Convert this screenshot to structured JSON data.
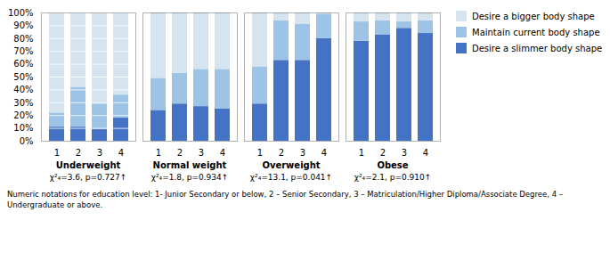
{
  "chart_data": [
    {
      "type": "bar",
      "stacked": true,
      "xlabel": "Underweight",
      "annotations": [
        "χ²₄=3.6, p=0.727↑"
      ],
      "categories": [
        1,
        2,
        3,
        4
      ],
      "series": [
        {
          "name": "Desire a slimmer body shape",
          "color": "#4472C4",
          "values": [
            11,
            11,
            9,
            18
          ]
        },
        {
          "name": "Maintain current body shape",
          "color": "#9DC3E6",
          "values": [
            11,
            31,
            20,
            18
          ]
        },
        {
          "name": "Desire a bigger body shape",
          "color": "#D6E4F0",
          "values": [
            78,
            58,
            71,
            64
          ]
        }
      ],
      "ylim": [
        0,
        100
      ],
      "yticks": [
        {
          "value": 0,
          "label": "0%"
        },
        {
          "value": 10,
          "label": "10%"
        },
        {
          "value": 20,
          "label": "20%"
        },
        {
          "value": 30,
          "label": "30%"
        },
        {
          "value": 40,
          "label": "40%"
        },
        {
          "value": 50,
          "label": "50%"
        },
        {
          "value": 60,
          "label": "60%"
        },
        {
          "value": 70,
          "label": "70%"
        },
        {
          "value": 80,
          "label": "80%"
        },
        {
          "value": 90,
          "label": "90%"
        },
        {
          "value": 100,
          "label": "100%"
        }
      ],
      "grid": true
    },
    {
      "type": "bar",
      "stacked": true,
      "xlabel": "Normal weight",
      "annotations": [
        "χ²₄=1.8, p=0.934↑"
      ],
      "categories": [
        1,
        2,
        3,
        4
      ],
      "series": [
        {
          "name": "Desire a slimmer body shape",
          "color": "#4472C4",
          "values": [
            24,
            29,
            27,
            25
          ]
        },
        {
          "name": "Maintain current body shape",
          "color": "#9DC3E6",
          "values": [
            25,
            24,
            29,
            31
          ]
        },
        {
          "name": "Desire a bigger body shape",
          "color": "#D6E4F0",
          "values": [
            51,
            47,
            44,
            44
          ]
        }
      ],
      "ylim": [
        0,
        100
      ],
      "tick_labels": "x",
      "grid": false
    },
    {
      "type": "bar",
      "stacked": true,
      "xlabel": "Overweight",
      "annotations": [
        "χ²₄=13.1, p=0.041↑"
      ],
      "categories": [
        1,
        2,
        3,
        4
      ],
      "series": [
        {
          "name": "Desire a slimmer body shape",
          "color": "#4472C4",
          "values": [
            29,
            63,
            63,
            80
          ]
        },
        {
          "name": "Maintain current body shape",
          "color": "#9DC3E6",
          "values": [
            29,
            31,
            28,
            19
          ]
        },
        {
          "name": "Desire a bigger body shape",
          "color": "#D6E4F0",
          "values": [
            42,
            6,
            9,
            1
          ]
        }
      ],
      "ylim": [
        0,
        100
      ],
      "tick_labels": "x",
      "grid": false
    },
    {
      "type": "bar",
      "stacked": true,
      "xlabel": "Obese",
      "annotations": [
        "χ²₄=2.1, p=0.910↑"
      ],
      "categories": [
        1,
        2,
        3,
        4
      ],
      "series": [
        {
          "name": "Desire a slimmer body shape",
          "color": "#4472C4",
          "values": [
            78,
            83,
            88,
            84
          ]
        },
        {
          "name": "Maintain current body shape",
          "color": "#9DC3E6",
          "values": [
            15,
            11,
            5,
            10
          ]
        },
        {
          "name": "Desire a bigger body shape",
          "color": "#D6E4F0",
          "values": [
            7,
            6,
            7,
            6
          ]
        }
      ],
      "ylim": [
        0,
        100
      ],
      "tick_labels": "x",
      "grid": false,
      "legend": "right"
    }
  ],
  "footnotes": [
    "Numeric notations for education level: 1- Junior Secondary or below, 2 – Senior Secondary, 3 – Matriculation/Higher Diploma/Associate Degree, 4 –",
    "Undergraduate or above."
  ]
}
